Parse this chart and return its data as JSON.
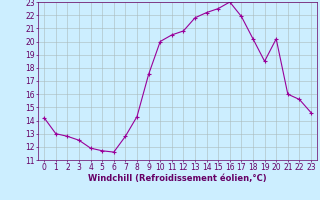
{
  "x": [
    0,
    1,
    2,
    3,
    4,
    5,
    6,
    7,
    8,
    9,
    10,
    11,
    12,
    13,
    14,
    15,
    16,
    17,
    18,
    19,
    20,
    21,
    22,
    23
  ],
  "y": [
    14.2,
    13.0,
    12.8,
    12.5,
    11.9,
    11.7,
    11.6,
    12.8,
    14.3,
    17.5,
    20.0,
    20.5,
    20.8,
    21.8,
    22.2,
    22.5,
    23.0,
    21.9,
    20.2,
    18.5,
    20.2,
    16.0,
    15.6,
    14.6
  ],
  "line_color": "#990099",
  "marker": "+",
  "markersize": 3,
  "markeredgewidth": 0.8,
  "linewidth": 0.8,
  "bg_color": "#cceeff",
  "grid_color": "#aabbbb",
  "xlabel": "Windchill (Refroidissement éolien,°C)",
  "xlabel_color": "#660066",
  "tick_color": "#660066",
  "xlim": [
    -0.5,
    23.5
  ],
  "ylim": [
    11,
    23
  ],
  "yticks": [
    11,
    12,
    13,
    14,
    15,
    16,
    17,
    18,
    19,
    20,
    21,
    22,
    23
  ],
  "xticks": [
    0,
    1,
    2,
    3,
    4,
    5,
    6,
    7,
    8,
    9,
    10,
    11,
    12,
    13,
    14,
    15,
    16,
    17,
    18,
    19,
    20,
    21,
    22,
    23
  ],
  "ylabel_fontsize": 5.5,
  "xlabel_fontsize": 6.0,
  "tick_fontsize": 5.5
}
